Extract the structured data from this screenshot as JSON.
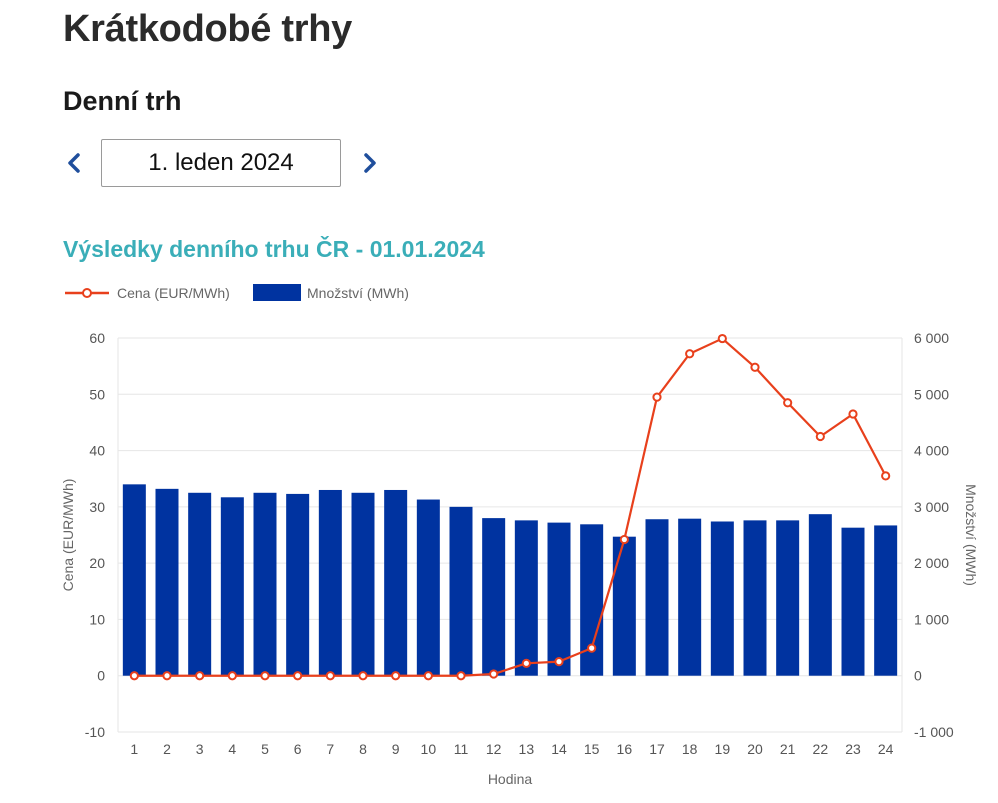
{
  "page": {
    "title": "Krátkodobé trhy",
    "section_title": "Denní trh"
  },
  "date_nav": {
    "value": "1. leden 2024",
    "prev_icon": "chevron-left-icon",
    "next_icon": "chevron-right-icon"
  },
  "colors": {
    "price_line": "#e8401c",
    "quantity_bar": "#0033a0",
    "chart_title": "#3aaeb8",
    "nav_arrow": "#1f4e9c"
  },
  "chart_data": {
    "type": "bar",
    "title": "Výsledky denního trhu ČR - 01.01.2024",
    "xlabel": "Hodina",
    "ylabel": "Cena (EUR/MWh)",
    "y2label": "Množství (MWh)",
    "ylim": [
      -10,
      60
    ],
    "y_ticks": [
      "60",
      "50",
      "40",
      "30",
      "20",
      "10",
      "0",
      "-10"
    ],
    "y_tick_values": [
      60,
      50,
      40,
      30,
      20,
      10,
      0,
      -10
    ],
    "y2lim": [
      -1000,
      6000
    ],
    "y2_ticks": [
      "6 000",
      "5 000",
      "4 000",
      "3 000",
      "2 000",
      "1 000",
      "0",
      "-1 000"
    ],
    "y2_tick_values": [
      6000,
      5000,
      4000,
      3000,
      2000,
      1000,
      0,
      -1000
    ],
    "categories": [
      "1",
      "2",
      "3",
      "4",
      "5",
      "6",
      "7",
      "8",
      "9",
      "10",
      "11",
      "12",
      "13",
      "14",
      "15",
      "16",
      "17",
      "18",
      "19",
      "20",
      "21",
      "22",
      "23",
      "24"
    ],
    "grid": true,
    "legend_position": "top-left",
    "series": [
      {
        "name": "Cena (EUR/MWh)",
        "type": "line",
        "axis": "left",
        "values": [
          0,
          0,
          0,
          0,
          0,
          0,
          0,
          0,
          0,
          0,
          0,
          0.3,
          2.2,
          2.5,
          4.9,
          24.2,
          49.5,
          57.2,
          59.9,
          54.8,
          48.5,
          42.5,
          46.5,
          35.5
        ]
      },
      {
        "name": "Množství (MWh)",
        "type": "bar",
        "axis": "right",
        "values": [
          3400,
          3320,
          3250,
          3170,
          3250,
          3230,
          3300,
          3250,
          3300,
          3130,
          3000,
          2800,
          2760,
          2720,
          2690,
          2470,
          2780,
          2790,
          2740,
          2760,
          2760,
          2870,
          2630,
          2670
        ]
      }
    ]
  }
}
